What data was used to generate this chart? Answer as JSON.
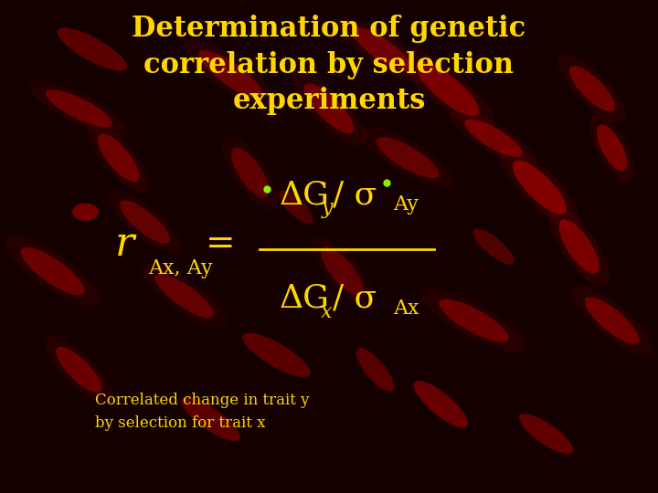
{
  "title": "Determination of genetic\ncorrelation by selection\nexperiments",
  "title_color": "#FFD700",
  "title_fontsize": 22,
  "bg_color": "#150000",
  "formula_color": "#FFD700",
  "annotation_color": "#FFD700",
  "annotation_text": "Correlated change in trait y\nby selection for trait x",
  "annotation_fontsize": 12,
  "green_dot_color": "#90EE00",
  "chromosomes": [
    [
      0.82,
      0.62,
      0.13,
      0.042,
      -55,
      0.9
    ],
    [
      0.88,
      0.5,
      0.12,
      0.038,
      -65,
      0.85
    ],
    [
      0.75,
      0.72,
      0.11,
      0.036,
      -40,
      0.8
    ],
    [
      0.68,
      0.82,
      0.14,
      0.044,
      -50,
      0.85
    ],
    [
      0.58,
      0.9,
      0.12,
      0.038,
      -45,
      0.75
    ],
    [
      0.93,
      0.7,
      0.1,
      0.032,
      -70,
      0.8
    ],
    [
      0.5,
      0.78,
      0.12,
      0.038,
      -55,
      0.75
    ],
    [
      0.35,
      0.85,
      0.13,
      0.04,
      -45,
      0.7
    ],
    [
      0.18,
      0.68,
      0.11,
      0.036,
      -60,
      0.75
    ],
    [
      0.12,
      0.78,
      0.12,
      0.038,
      -35,
      0.7
    ],
    [
      0.22,
      0.55,
      0.11,
      0.036,
      -50,
      0.65
    ],
    [
      0.08,
      0.45,
      0.13,
      0.042,
      -45,
      0.7
    ],
    [
      0.9,
      0.82,
      0.11,
      0.036,
      -55,
      0.75
    ],
    [
      0.62,
      0.68,
      0.12,
      0.04,
      -40,
      0.65
    ],
    [
      0.38,
      0.65,
      0.11,
      0.036,
      -65,
      0.6
    ],
    [
      0.93,
      0.35,
      0.12,
      0.038,
      -50,
      0.75
    ],
    [
      0.72,
      0.35,
      0.13,
      0.042,
      -38,
      0.7
    ],
    [
      0.52,
      0.45,
      0.11,
      0.036,
      -60,
      0.6
    ],
    [
      0.28,
      0.4,
      0.12,
      0.038,
      -45,
      0.65
    ],
    [
      0.12,
      0.25,
      0.11,
      0.036,
      -55,
      0.7
    ],
    [
      0.42,
      0.28,
      0.13,
      0.042,
      -40,
      0.65
    ],
    [
      0.67,
      0.18,
      0.12,
      0.038,
      -50,
      0.75
    ],
    [
      0.83,
      0.12,
      0.11,
      0.036,
      -45,
      0.7
    ],
    [
      0.14,
      0.9,
      0.13,
      0.042,
      -38,
      0.65
    ],
    [
      0.57,
      0.25,
      0.1,
      0.032,
      -60,
      0.6
    ],
    [
      0.32,
      0.15,
      0.12,
      0.038,
      -45,
      0.65
    ],
    [
      0.75,
      0.5,
      0.09,
      0.03,
      -50,
      0.55
    ],
    [
      0.45,
      0.58,
      0.08,
      0.028,
      -55,
      0.5
    ],
    [
      0.13,
      0.57,
      0.04,
      0.035,
      0,
      0.85
    ]
  ],
  "chrom_color": "#cc0000",
  "chrom_edge": "#880000"
}
